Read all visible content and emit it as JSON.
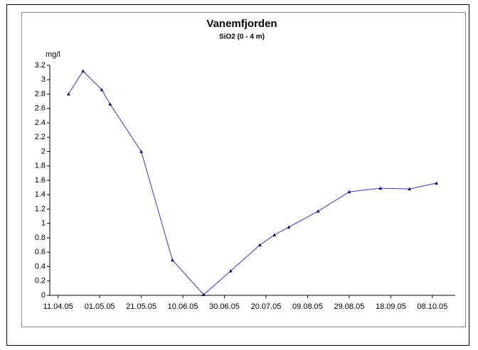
{
  "chart_data": {
    "type": "line",
    "title": "Vanemfjorden",
    "subtitle": "SiO2 (0 - 4 m)",
    "y_label": "mg/l",
    "x": [
      "2005-04-16",
      "2005-04-23",
      "2005-05-02",
      "2005-05-06",
      "2005-05-21",
      "2005-06-05",
      "2005-06-20",
      "2005-07-03",
      "2005-07-17",
      "2005-07-24",
      "2005-07-31",
      "2005-08-14",
      "2005-08-29",
      "2005-09-13",
      "2005-09-27",
      "2005-10-10"
    ],
    "values": [
      2.8,
      3.12,
      2.86,
      2.66,
      2.0,
      0.49,
      0.01,
      0.34,
      0.7,
      0.84,
      0.95,
      1.17,
      1.44,
      1.49,
      1.48,
      1.56
    ],
    "color": "#3a3aa8",
    "xlim": [
      "2005-04-07",
      "2005-10-19"
    ],
    "xticks": [
      {
        "value": "2005-04-11",
        "label": "11.04.05"
      },
      {
        "value": "2005-05-01",
        "label": "01.05.05"
      },
      {
        "value": "2005-05-21",
        "label": "21.05.05"
      },
      {
        "value": "2005-06-10",
        "label": "10.06.05"
      },
      {
        "value": "2005-06-30",
        "label": "30.06.05"
      },
      {
        "value": "2005-07-20",
        "label": "20.07.05"
      },
      {
        "value": "2005-08-09",
        "label": "09.08.05"
      },
      {
        "value": "2005-08-29",
        "label": "29.08.05"
      },
      {
        "value": "2005-09-18",
        "label": "18.09.05"
      },
      {
        "value": "2005-10-08",
        "label": "08.10.05"
      }
    ],
    "ylim": [
      0,
      3.2
    ],
    "yticks": [
      0,
      0.2,
      0.4,
      0.6,
      0.8,
      1,
      1.2,
      1.4,
      1.6,
      1.8,
      2,
      2.2,
      2.4,
      2.6,
      2.8,
      3,
      3.2
    ],
    "grid": false
  }
}
